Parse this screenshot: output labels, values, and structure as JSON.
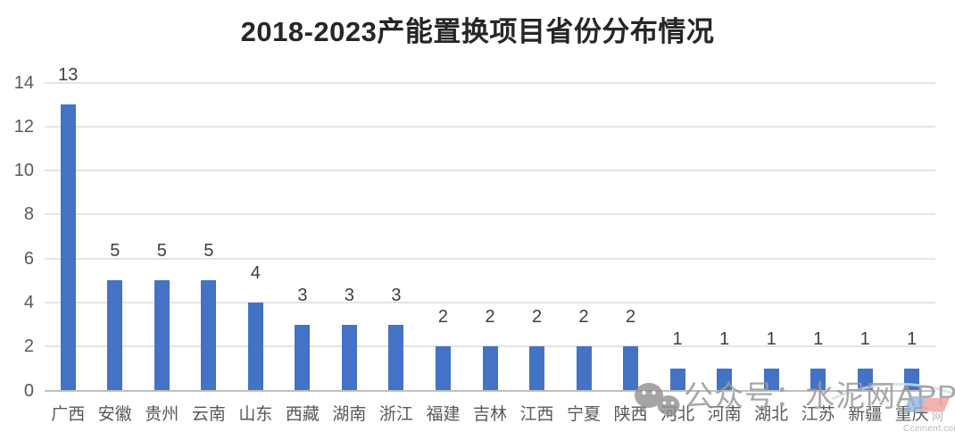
{
  "title": {
    "year_range": "2018-2023",
    "text": "产能置换项目省份分布情况"
  },
  "chart_data": {
    "type": "bar",
    "title": "2018-2023产能置换项目省份分布情况",
    "categories": [
      "广西",
      "安徽",
      "贵州",
      "云南",
      "山东",
      "西藏",
      "湖南",
      "浙江",
      "福建",
      "吉林",
      "江西",
      "宁夏",
      "陕西",
      "河北",
      "河南",
      "湖北",
      "江苏",
      "新疆",
      "重庆"
    ],
    "values": [
      13,
      5,
      5,
      5,
      4,
      3,
      3,
      3,
      2,
      2,
      2,
      2,
      2,
      1,
      1,
      1,
      1,
      1,
      1
    ],
    "xlabel": "",
    "ylabel": "",
    "ylim": [
      0,
      14
    ],
    "yticks": [
      0,
      2,
      4,
      6,
      8,
      10,
      12,
      14
    ],
    "grid": true,
    "legend": false,
    "data_labels": true,
    "bar_color": "#4472C4",
    "gridline_color": "#E4E4E4",
    "axis_line_color": "#BFBFBF",
    "tick_label_color": "#595959",
    "data_label_color": "#3F3F3F"
  },
  "watermark": {
    "icon": "wechat-icon",
    "text": "公众号：水泥网APP",
    "logo_char": "网",
    "site_text": "Ccement.com"
  }
}
